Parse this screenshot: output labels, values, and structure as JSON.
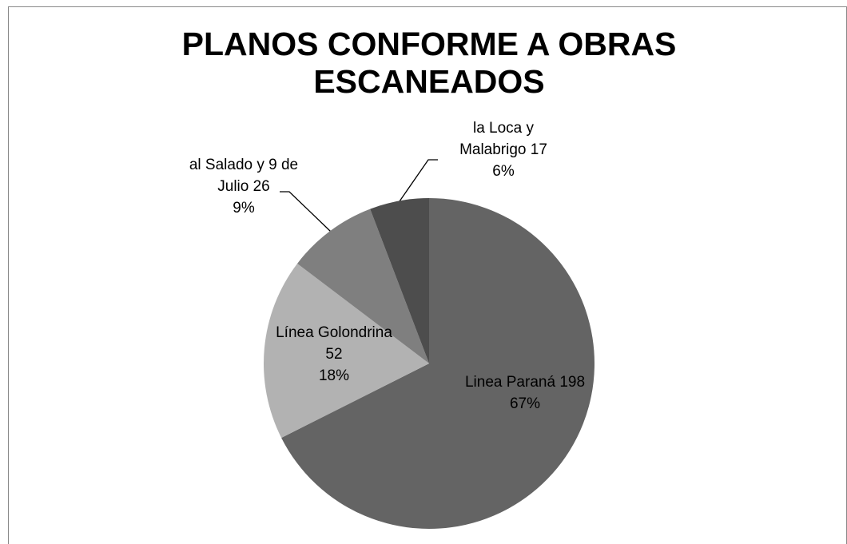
{
  "chart_data": {
    "type": "pie",
    "title": "PLANOS CONFORME A OBRAS ESCANEADOS",
    "categories": [
      "Linea Paraná",
      "Línea Golondrina",
      "al Salado y 9 de Julio",
      "la Loca y Malabrigo"
    ],
    "values": [
      198,
      52,
      26,
      17
    ],
    "percentages": [
      67,
      18,
      9,
      6
    ],
    "percentage_labels": [
      "67%",
      "18%",
      "9%",
      "6%"
    ],
    "colors": [
      "#646464",
      "#b2b2b2",
      "#7f7f7f",
      "#4d4d4d"
    ]
  }
}
